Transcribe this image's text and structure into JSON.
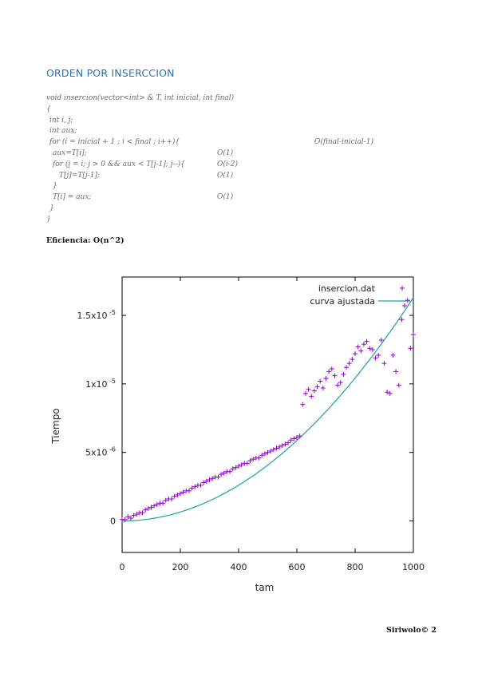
{
  "heading": "ORDEN POR INSERCCION",
  "code": [
    {
      "text": "void insercion(vector<int> & T, int inicial, int final)",
      "indent": 0,
      "order": ""
    },
    {
      "text": "{",
      "indent": 0,
      "order": ""
    },
    {
      "text": "int i, j;",
      "indent": 1,
      "order": ""
    },
    {
      "text": "int aux;",
      "indent": 1,
      "order": ""
    },
    {
      "text": "for (i = inicial + 1 ; i < final ; i++){",
      "indent": 1,
      "order": "O(final-inicial-1)",
      "order_col": "far"
    },
    {
      "text": "aux=T[i];",
      "indent": 2,
      "order": "O(1)",
      "order_col": "mid"
    },
    {
      "text": "for (j = i; j > 0 && aux < T[j-1]; j--){",
      "indent": 2,
      "order": "O(i-2)",
      "order_col": "mid"
    },
    {
      "text": "T[j]=T[j-1];",
      "indent": 4,
      "order": "O(1)",
      "order_col": "mid"
    },
    {
      "text": "}",
      "indent": 2,
      "order": ""
    },
    {
      "text": "T[i] = aux;",
      "indent": 2,
      "order": "O(1)",
      "order_col": "mid"
    },
    {
      "text": "}",
      "indent": 1,
      "order": ""
    },
    {
      "text": "}",
      "indent": 0,
      "order": ""
    }
  ],
  "efficiency": "Eficiencia: O(n^2)",
  "footer": "Siriwolo© 2",
  "chart_data": {
    "type": "scatter",
    "xlabel": "tam",
    "ylabel": "Tiempo",
    "xlim": [
      0,
      1000
    ],
    "ylim": [
      -2.3e-06,
      1.78e-05
    ],
    "xticks": [
      0,
      200,
      400,
      600,
      800,
      1000
    ],
    "xtick_labels": [
      "0",
      "200",
      "400",
      "600",
      "800",
      "1000"
    ],
    "yticks": [
      0,
      5e-06,
      1e-05,
      1.5e-05
    ],
    "ytick_labels": [
      {
        "base": "0",
        "exp": ""
      },
      {
        "base": "5x10",
        "exp": "-6"
      },
      {
        "base": "1x10",
        "exp": "-5"
      },
      {
        "base": "1.5x10",
        "exp": "-5"
      }
    ],
    "legend_position": "top-right",
    "grid": false,
    "series": [
      {
        "name": "insercion.dat",
        "kind": "points",
        "color": "#9400d3",
        "x": [
          0,
          10,
          20,
          30,
          40,
          50,
          60,
          70,
          80,
          90,
          100,
          110,
          120,
          130,
          140,
          150,
          160,
          170,
          180,
          190,
          200,
          210,
          220,
          230,
          240,
          250,
          260,
          270,
          280,
          290,
          300,
          310,
          320,
          330,
          340,
          350,
          360,
          370,
          380,
          390,
          400,
          410,
          420,
          430,
          440,
          450,
          460,
          470,
          480,
          490,
          500,
          510,
          520,
          530,
          540,
          550,
          560,
          570,
          580,
          590,
          600,
          610,
          620,
          630,
          640,
          650,
          660,
          670,
          680,
          690,
          700,
          710,
          720,
          730,
          740,
          750,
          760,
          770,
          780,
          790,
          800,
          810,
          820,
          830,
          840,
          850,
          860,
          870,
          880,
          890,
          900,
          910,
          920,
          930,
          940,
          950,
          960,
          970,
          980,
          990,
          1000
        ],
        "y": [
          1e-07,
          1e-07,
          3e-07,
          2e-07,
          4e-07,
          5e-07,
          6e-07,
          6e-07,
          8e-07,
          9e-07,
          1e-06,
          1.1e-06,
          1.2e-06,
          1.3e-06,
          1.3e-06,
          1.5e-06,
          1.6e-06,
          1.6e-06,
          1.8e-06,
          1.9e-06,
          2e-06,
          2.1e-06,
          2.2e-06,
          2.2e-06,
          2.4e-06,
          2.5e-06,
          2.6e-06,
          2.6e-06,
          2.8e-06,
          2.9e-06,
          3e-06,
          3.1e-06,
          3.2e-06,
          3.2e-06,
          3.4e-06,
          3.5e-06,
          3.6e-06,
          3.6e-06,
          3.8e-06,
          3.9e-06,
          4e-06,
          4.1e-06,
          4.2e-06,
          4.2e-06,
          4.4e-06,
          4.5e-06,
          4.6e-06,
          4.6e-06,
          4.8e-06,
          4.9e-06,
          5e-06,
          5.1e-06,
          5.2e-06,
          5.3e-06,
          5.4e-06,
          5.5e-06,
          5.6e-06,
          5.7e-06,
          5.9e-06,
          6e-06,
          6.1e-06,
          6.2e-06,
          8.5e-06,
          9.3e-06,
          9.6e-06,
          9.1e-06,
          9.5e-06,
          9.8e-06,
          1.02e-05,
          9.7e-06,
          1.04e-05,
          1.09e-05,
          1.11e-05,
          1.06e-05,
          9.9e-06,
          1.01e-05,
          1.07e-05,
          1.12e-05,
          1.15e-05,
          1.18e-05,
          1.22e-05,
          1.27e-05,
          1.24e-05,
          1.29e-05,
          1.31e-05,
          1.26e-05,
          1.25e-05,
          1.19e-05,
          1.21e-05,
          1.32e-05,
          1.15e-05,
          9.4e-06,
          9.3e-06,
          1.21e-05,
          1.09e-05,
          9.9e-06,
          1.47e-05,
          1.57e-05,
          1.61e-05,
          1.26e-05,
          1.36e-05
        ]
      },
      {
        "name": "curva ajustada",
        "kind": "line",
        "color": "#1aa39a",
        "func": "a*x^2",
        "a": 1.63e-11
      }
    ]
  }
}
